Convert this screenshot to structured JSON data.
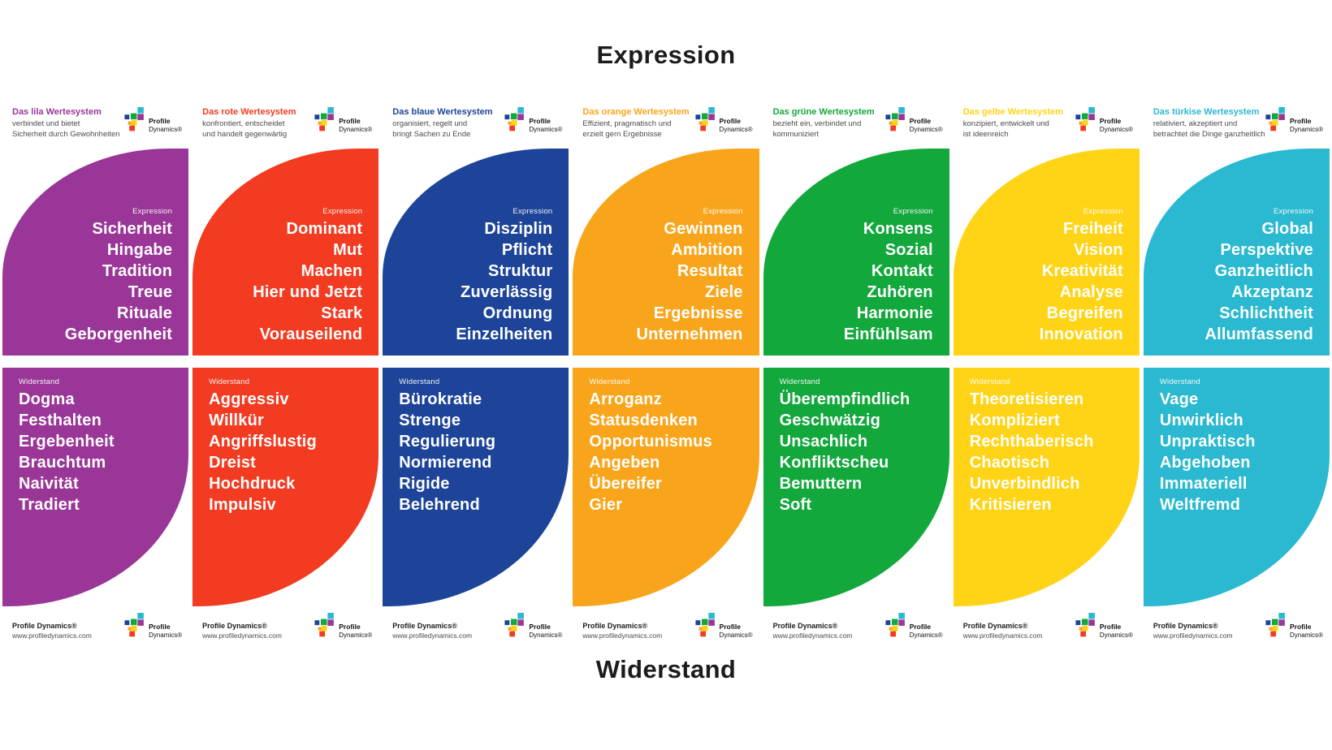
{
  "page": {
    "title_top": "Expression",
    "title_bottom": "Widerstand",
    "section_labels": {
      "expression": "Expression",
      "widerstand": "Widerstand"
    },
    "brand": {
      "logo_word1": "Profile",
      "logo_word2": "Dynamics®",
      "footer_name": "Profile Dynamics®",
      "footer_url": "www.profiledynamics.com"
    },
    "logo_palette": {
      "cyan": "#2AB9D0",
      "blue": "#1D4499",
      "green": "#12A83C",
      "purple": "#9A3697",
      "yellow": "#FFD416",
      "orange": "#F9A51B",
      "red": "#F23B21"
    }
  },
  "columns": [
    {
      "id": "lila",
      "color": "#9A3697",
      "title": "Das lila Wertesystem",
      "subtitle": "verbindet und bietet\nSicherheit durch Gewohnheiten",
      "expression": [
        "Sicherheit",
        "Hingabe",
        "Tradition",
        "Treue",
        "Rituale",
        "Geborgenheit"
      ],
      "widerstand": [
        "Dogma",
        "Festhalten",
        "Ergebenheit",
        "Brauchtum",
        "Naivität",
        "Tradiert"
      ]
    },
    {
      "id": "rot",
      "color": "#F23B21",
      "title": "Das rote Wertesystem",
      "subtitle": "konfrontiert, entscheidet\nund handelt gegenwärtig",
      "expression": [
        "Dominant",
        "Mut",
        "Machen",
        "Hier und Jetzt",
        "Stark",
        "Vorauseilend"
      ],
      "widerstand": [
        "Aggressiv",
        "Willkür",
        "Angriffslustig",
        "Dreist",
        "Hochdruck",
        "Impulsiv"
      ]
    },
    {
      "id": "blau",
      "color": "#1D4499",
      "title": "Das blaue Wertesystem",
      "subtitle": "organisiert, regelt und\nbringt Sachen zu Ende",
      "expression": [
        "Disziplin",
        "Pflicht",
        "Struktur",
        "Zuverlässig",
        "Ordnung",
        "Einzelheiten"
      ],
      "widerstand": [
        "Bürokratie",
        "Strenge",
        "Regulierung",
        "Normierend",
        "Rigide",
        "Belehrend"
      ]
    },
    {
      "id": "orange",
      "color": "#F9A51B",
      "title": "Das orange Wertesystem",
      "subtitle": "Effizient, pragmatisch und\nerzielt gern Ergebnisse",
      "expression": [
        "Gewinnen",
        "Ambition",
        "Resultat",
        "Ziele",
        "Ergebnisse",
        "Unternehmen"
      ],
      "widerstand": [
        "Arroganz",
        "Statusdenken",
        "Opportunismus",
        "Angeben",
        "Übereifer",
        "Gier"
      ]
    },
    {
      "id": "gruen",
      "color": "#12A83C",
      "title": "Das grüne Wertesystem",
      "subtitle": "bezieht ein, verbindet und\nkommuniziert",
      "expression": [
        "Konsens",
        "Sozial",
        "Kontakt",
        "Zuhören",
        "Harmonie",
        "Einfühlsam"
      ],
      "widerstand": [
        "Überempfindlich",
        "Geschwätzig",
        "Unsachlich",
        "Konfliktscheu",
        "Bemuttern",
        "Soft"
      ]
    },
    {
      "id": "gelb",
      "color": "#FFD416",
      "title": "Das gelbe Wertesystem",
      "subtitle": "konzipiert, entwickelt und\nist ideenreich",
      "expression": [
        "Freiheit",
        "Vision",
        "Kreativität",
        "Analyse",
        "Begreifen",
        "Innovation"
      ],
      "widerstand": [
        "Theoretisieren",
        "Kompliziert",
        "Rechthaberisch",
        "Chaotisch",
        "Unverbindlich",
        "Kritisieren"
      ]
    },
    {
      "id": "tuerkis",
      "color": "#2AB9D0",
      "title": "Das türkise Wertesystem",
      "subtitle": "relativiert, akzeptiert und\nbetrachtet die Dinge ganzheitlich",
      "expression": [
        "Global",
        "Perspektive",
        "Ganzheitlich",
        "Akzeptanz",
        "Schlichtheit",
        "Allumfassend"
      ],
      "widerstand": [
        "Vage",
        "Unwirklich",
        "Unpraktisch",
        "Abgehoben",
        "Immateriell",
        "Weltfremd"
      ]
    }
  ]
}
